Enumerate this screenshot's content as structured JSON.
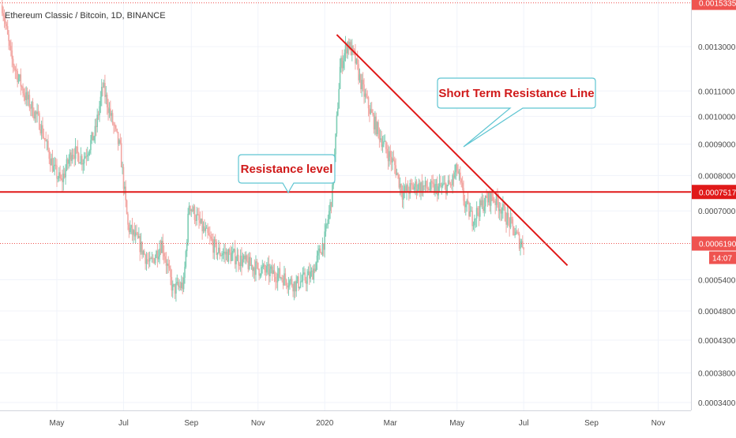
{
  "chart_data": {
    "type": "candlestick",
    "title": "Ethereum Classic / Bitcoin, 1D, BINANCE",
    "y_scale": "log",
    "ylim": [
      0.00033,
      0.00155
    ],
    "y_ticks": [
      "0.0013000",
      "0.0011000",
      "0.0010000",
      "0.0009000",
      "0.0008000",
      "0.0007000",
      "0.0005400",
      "0.0004800",
      "0.0004300",
      "0.0003800",
      "0.0003400"
    ],
    "y_tick_values": [
      0.0013,
      0.0011,
      0.001,
      0.0009,
      0.0008,
      0.0007,
      0.00054,
      0.00048,
      0.00043,
      0.00038,
      0.00034
    ],
    "x_ticks": [
      "May",
      "Jul",
      "Sep",
      "Nov",
      "2020",
      "Mar",
      "May",
      "Jul",
      "Sep",
      "Nov"
    ],
    "x_tick_dates": [
      "2019-05-01",
      "2019-07-01",
      "2019-09-01",
      "2019-11-01",
      "2020-01-01",
      "2020-03-01",
      "2020-05-01",
      "2020-07-01",
      "2020-09-01",
      "2020-11-01"
    ],
    "x_range": [
      "2019-03-10",
      "2020-12-01"
    ],
    "grid": true,
    "up_color": "#7ecdb5",
    "down_color": "#f2a6a2",
    "price_path": [
      [
        "2019-03-12",
        0.00152
      ],
      [
        "2019-03-20",
        0.00125
      ],
      [
        "2019-04-02",
        0.00108
      ],
      [
        "2019-04-15",
        0.00098
      ],
      [
        "2019-04-28",
        0.00082
      ],
      [
        "2019-05-05",
        0.00078
      ],
      [
        "2019-05-15",
        0.00088
      ],
      [
        "2019-05-25",
        0.00085
      ],
      [
        "2019-06-05",
        0.00094
      ],
      [
        "2019-06-12",
        0.00112
      ],
      [
        "2019-06-20",
        0.00099
      ],
      [
        "2019-06-28",
        0.00088
      ],
      [
        "2019-07-05",
        0.00066
      ],
      [
        "2019-07-15",
        0.00062
      ],
      [
        "2019-07-25",
        0.00057
      ],
      [
        "2019-08-05",
        0.00062
      ],
      [
        "2019-08-15",
        0.00052
      ],
      [
        "2019-08-25",
        0.00053
      ],
      [
        "2019-08-30",
        0.00072
      ],
      [
        "2019-09-10",
        0.00066
      ],
      [
        "2019-09-25",
        0.0006
      ],
      [
        "2019-10-10",
        0.00059
      ],
      [
        "2019-10-25",
        0.00057
      ],
      [
        "2019-11-05",
        0.00056
      ],
      [
        "2019-11-20",
        0.00055
      ],
      [
        "2019-12-05",
        0.00053
      ],
      [
        "2019-12-20",
        0.00055
      ],
      [
        "2020-01-01",
        0.00063
      ],
      [
        "2020-01-08",
        0.00075
      ],
      [
        "2020-01-15",
        0.0012
      ],
      [
        "2020-01-22",
        0.00132
      ],
      [
        "2020-01-28",
        0.00125
      ],
      [
        "2020-02-05",
        0.0011
      ],
      [
        "2020-02-15",
        0.00098
      ],
      [
        "2020-02-25",
        0.00089
      ],
      [
        "2020-03-05",
        0.00083
      ],
      [
        "2020-03-12",
        0.00075
      ],
      [
        "2020-03-25",
        0.00077
      ],
      [
        "2020-04-10",
        0.00076
      ],
      [
        "2020-04-25",
        0.00077
      ],
      [
        "2020-05-01",
        0.00082
      ],
      [
        "2020-05-08",
        0.00072
      ],
      [
        "2020-05-15",
        0.00068
      ],
      [
        "2020-05-25",
        0.00072
      ],
      [
        "2020-06-02",
        0.00074
      ],
      [
        "2020-06-10",
        0.00071
      ],
      [
        "2020-06-20",
        0.00066
      ],
      [
        "2020-06-28",
        0.00062
      ],
      [
        "2020-07-01",
        0.000619
      ]
    ],
    "last_price": "0.0006190",
    "last_price_value": 0.000619,
    "countdown": "14:07",
    "high_marker": "0.0015335",
    "high_marker_value": 0.0015335,
    "resistance_level": {
      "value": 0.0007517,
      "label": "0.0007517",
      "annotation": "Resistance level"
    },
    "trend_line": {
      "start": [
        "2020-01-12",
        0.00136
      ],
      "end": [
        "2020-08-10",
        0.00057
      ],
      "annotation": "Short Term Resistance Line"
    }
  },
  "colors": {
    "resistance": "#e01919",
    "last_price_bg": "#ef5350",
    "callout_border": "#5fc5d2",
    "callout_text": "#d01a1a"
  }
}
